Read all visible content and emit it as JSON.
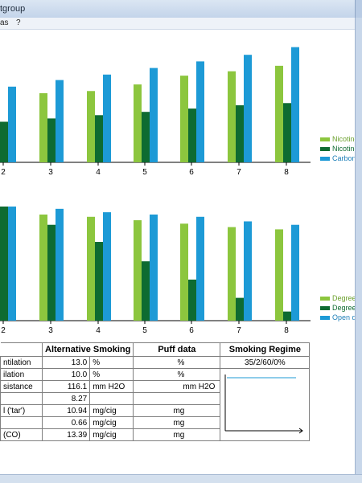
{
  "window": {
    "title": "tgroup"
  },
  "menu": {
    "items": [
      "as",
      "?"
    ]
  },
  "chart_data": [
    {
      "type": "bar",
      "categories": [
        "2",
        "3",
        "4",
        "5",
        "6",
        "7",
        "8"
      ],
      "series": [
        {
          "name": "Nicotine-f",
          "color": "#8cc63e",
          "values": [
            64,
            63,
            65,
            71,
            79,
            83,
            88
          ]
        },
        {
          "name": "Nicotine",
          "color": "#0e6b31",
          "values": [
            37,
            40,
            43,
            46,
            49,
            52,
            54
          ]
        },
        {
          "name": "Carbon m",
          "color": "#1d9ad6",
          "values": [
            69,
            75,
            80,
            86,
            92,
            98,
            105
          ]
        }
      ],
      "ylim": [
        0,
        115
      ]
    },
    {
      "type": "bar",
      "categories": [
        "2",
        "3",
        "4",
        "5",
        "6",
        "7",
        "8"
      ],
      "series": [
        {
          "name": "Degree o",
          "color": "#8cc63e",
          "values": [
            100,
            93,
            91,
            88,
            85,
            82,
            80
          ]
        },
        {
          "name": "Degree o",
          "color": "#0e6b31",
          "values": [
            100,
            84,
            69,
            52,
            36,
            20,
            8
          ]
        },
        {
          "name": "Open dra",
          "color": "#1d9ad6",
          "values": [
            100,
            98,
            95,
            93,
            91,
            87,
            84
          ]
        }
      ],
      "ylim": [
        0,
        100
      ]
    }
  ],
  "table": {
    "headers": [
      "Alternative Smoking",
      "Puff data",
      "Smoking Regime"
    ],
    "regime_value": "35/2/60/0%",
    "rows": [
      {
        "label": "ntilation",
        "value": "13.0",
        "unit": "%",
        "puff_unit": "%"
      },
      {
        "label": "ilation",
        "value": "10.0",
        "unit": "%",
        "puff_unit": "%"
      },
      {
        "label": "sistance",
        "value": "116.1",
        "unit": "mm H2O",
        "puff_unit": "mm H2O"
      },
      {
        "label": "",
        "value": "8.27",
        "unit": "",
        "puff_unit": ""
      },
      {
        "label": "l ('tar')",
        "value": "10.94",
        "unit": "mg/cig",
        "puff_unit": "mg"
      },
      {
        "label": "",
        "value": "0.66",
        "unit": "mg/cig",
        "puff_unit": "mg"
      },
      {
        "label": "(CO)",
        "value": "13.39",
        "unit": "mg/cig",
        "puff_unit": "mg"
      }
    ]
  }
}
